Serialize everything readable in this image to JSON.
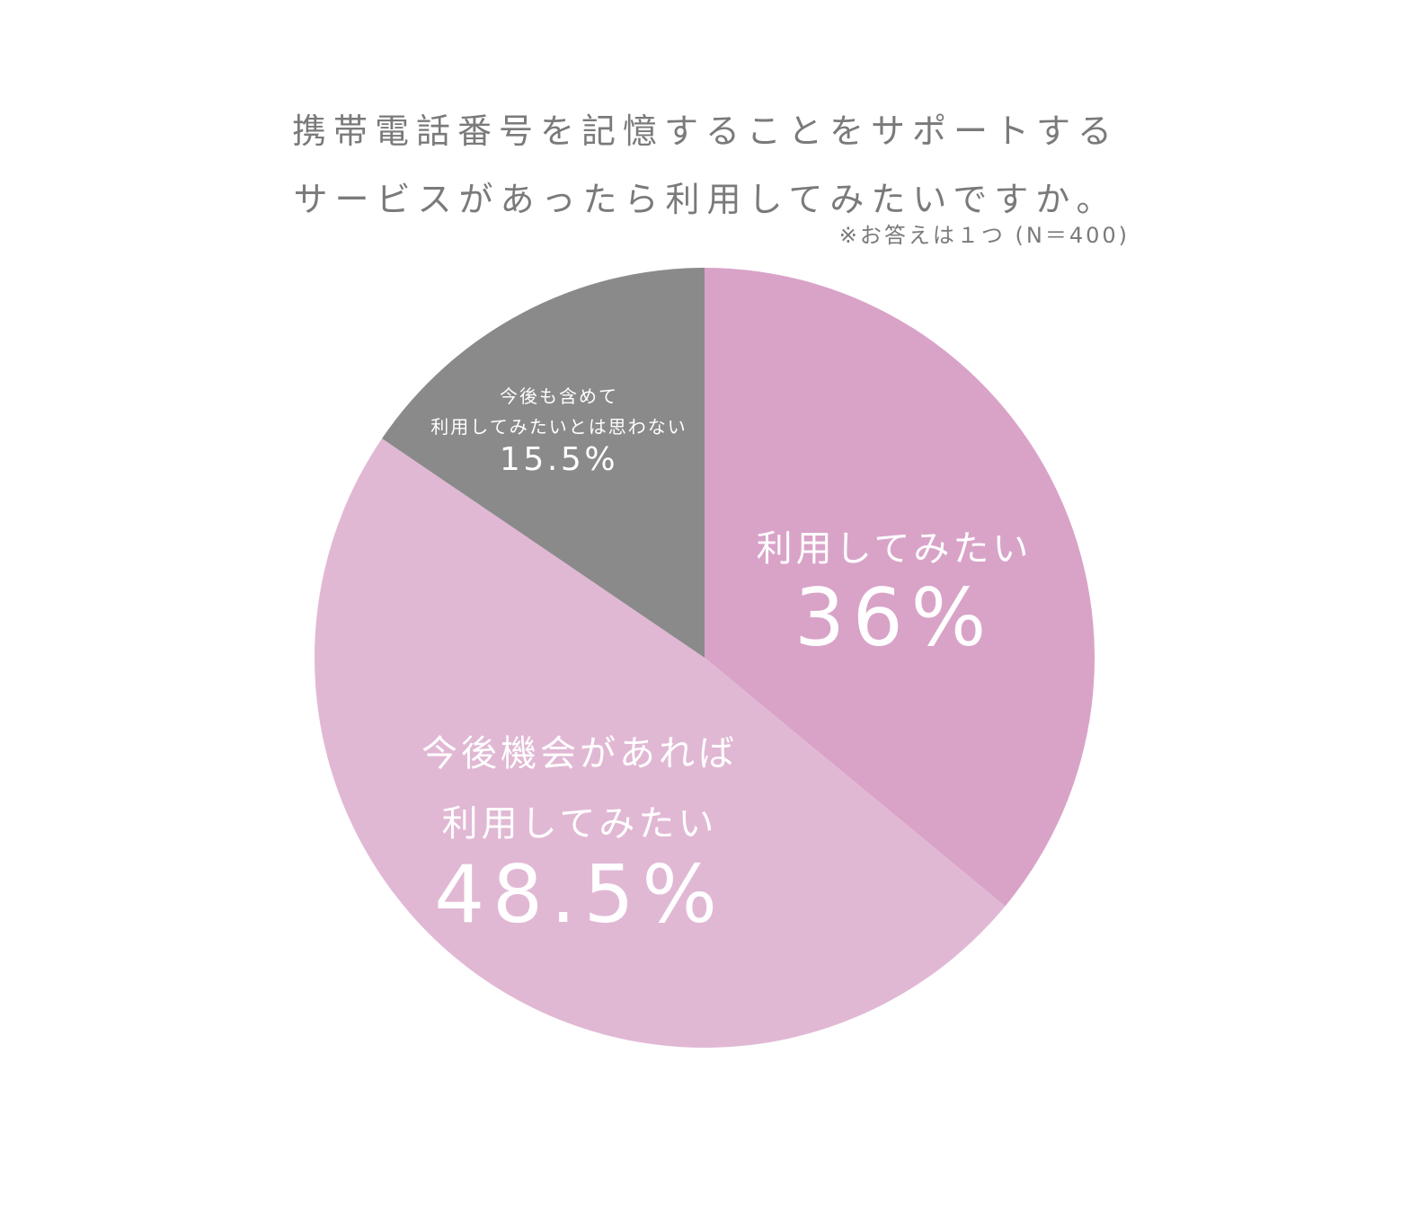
{
  "chart_data": {
    "type": "pie",
    "title": "携帯電話番号を記憶することをサポートする\nサービスがあったら利用してみたいですか。",
    "subtitle": "※お答えは１つ (N＝400)",
    "categories": [
      "利用してみたい",
      "今後機会があれば\n利用してみたい",
      "今後も含めて\n利用してみたいとは思わない"
    ],
    "values": [
      36,
      48.5,
      15.5
    ],
    "value_labels": [
      "36%",
      "48.5%",
      "15.5%"
    ],
    "colors": [
      "#d9a3c8",
      "#e1b8d4",
      "#8a8a8a"
    ]
  }
}
